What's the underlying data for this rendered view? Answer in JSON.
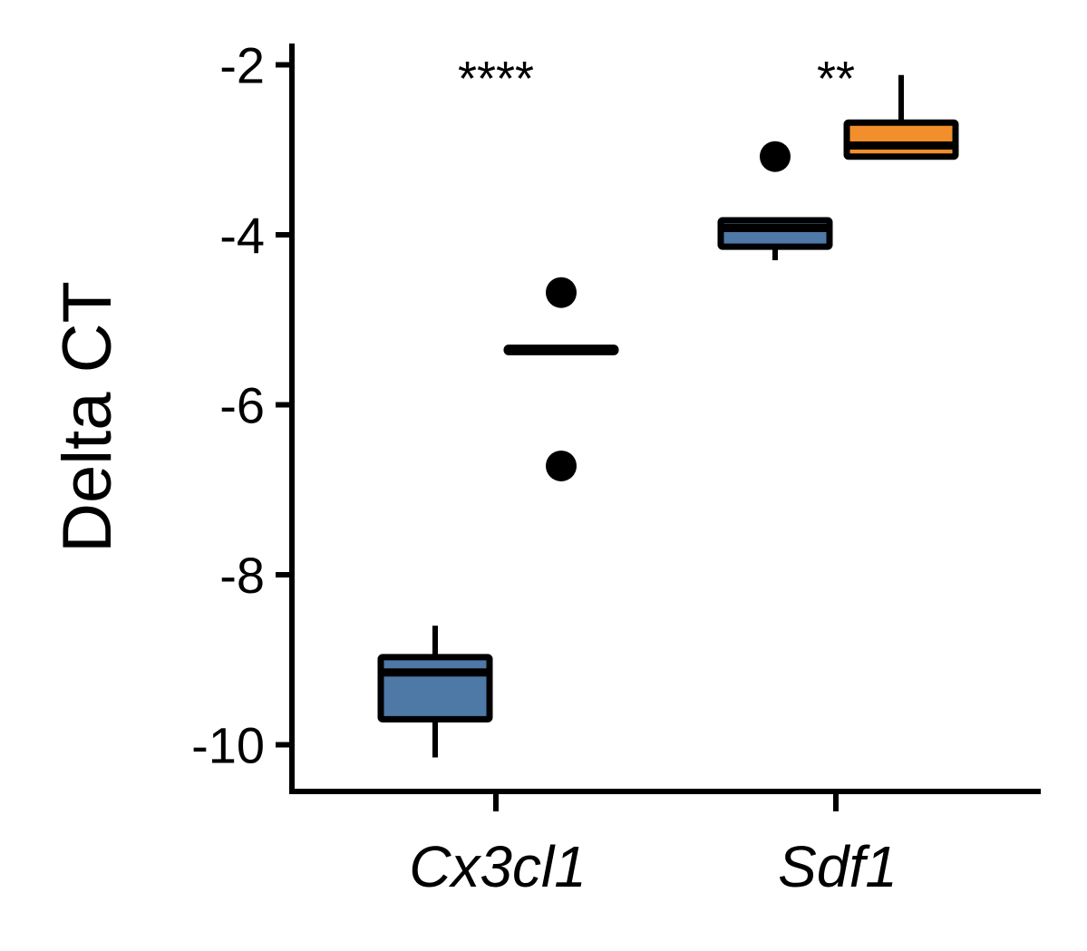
{
  "chart_data": {
    "type": "box",
    "ylabel": "Delta CT",
    "ylim": [
      -10.55,
      -1.75
    ],
    "yticks": [
      -2,
      -4,
      -6,
      -8,
      -10
    ],
    "ytick_labels": [
      "-2",
      "-4",
      "-6",
      "-8",
      "-10"
    ],
    "categories": [
      "Cx3cl1",
      "Sdf1"
    ],
    "significance": [
      "****",
      "**"
    ],
    "grid": false,
    "legend": "none",
    "groups": [
      {
        "category": "Cx3cl1",
        "group_index": 0,
        "color": "#4e78a6",
        "q1": -9.7,
        "median": -9.15,
        "q3": -8.97,
        "whisker_low": -10.15,
        "whisker_high": -8.6,
        "outliers": []
      },
      {
        "category": "Cx3cl1",
        "group_index": 1,
        "color": "#000000",
        "q1": -5.38,
        "median": -5.36,
        "q3": -5.33,
        "whisker_low": -5.38,
        "whisker_high": -5.33,
        "outliers": [
          -4.68,
          -6.72
        ]
      },
      {
        "category": "Sdf1",
        "group_index": 0,
        "color": "#4e78a6",
        "q1": -4.14,
        "median": -3.92,
        "q3": -3.83,
        "whisker_low": -4.3,
        "whisker_high": -3.83,
        "outliers": [
          -3.08
        ]
      },
      {
        "category": "Sdf1",
        "group_index": 1,
        "color": "#f28e2b",
        "q1": -3.08,
        "median": -2.95,
        "q3": -2.68,
        "whisker_low": -3.08,
        "whisker_high": -2.12,
        "outliers": []
      }
    ]
  }
}
